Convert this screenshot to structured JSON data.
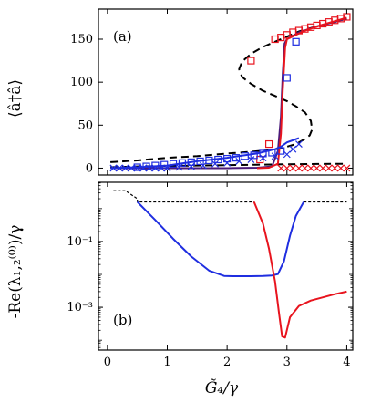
{
  "figure": {
    "x_label": "G̃₄/γ",
    "x_ticks": [
      "0",
      "1",
      "2",
      "3",
      "4"
    ]
  },
  "chart_data": [
    {
      "panel": "(a)",
      "type": "line",
      "ylabel": "⟨â†â⟩",
      "xlim": [
        -0.15,
        4.1
      ],
      "ylim": [
        -8,
        185
      ],
      "x_ticks": [
        0,
        1,
        2,
        3,
        4
      ],
      "y_ticks": [
        0,
        50,
        100,
        150
      ],
      "y_tick_labels": [
        "0",
        "50",
        "100",
        "150"
      ],
      "colors": {
        "red": "#e8141e",
        "blue": "#1f2ee0",
        "purple": "#4a1a7a",
        "black": "#000000"
      },
      "series": [
        {
          "style": "dashed",
          "color": "black",
          "x": [
            0.05,
            0.5,
            1.0,
            1.5,
            2.0,
            2.4,
            2.7,
            2.9,
            3.0,
            3.1,
            3.2,
            3.3,
            3.38,
            3.42,
            3.4,
            3.3,
            3.15,
            3.0,
            2.8,
            2.6,
            2.4,
            2.25,
            2.2,
            2.25,
            2.4,
            2.6,
            2.8,
            3.0,
            3.2,
            3.5,
            3.8,
            4.0
          ],
          "y": [
            7,
            9,
            12,
            14,
            17,
            19,
            21,
            23,
            25,
            27,
            30,
            34,
            38,
            45,
            55,
            65,
            72,
            78,
            84,
            90,
            98,
            106,
            115,
            124,
            133,
            141,
            147,
            153,
            159,
            165,
            170,
            174
          ]
        },
        {
          "style": "dashed",
          "color": "black",
          "x": [
            0.05,
            0.5,
            1.0,
            1.5,
            2.0,
            2.5,
            3.0,
            3.5,
            4.0
          ],
          "y": [
            1,
            2,
            2.5,
            3,
            3.5,
            4,
            4.5,
            4.8,
            5
          ]
        },
        {
          "style": "solid",
          "color": "purple",
          "x": [
            0.05,
            0.5,
            1.0,
            1.5,
            2.0,
            2.5,
            2.75,
            2.85,
            2.9,
            2.93,
            2.96,
            3.0,
            3.2,
            3.5,
            3.8,
            4.0
          ],
          "y": [
            0,
            0,
            0,
            0,
            0,
            0.5,
            2,
            20,
            60,
            110,
            145,
            150,
            158,
            165,
            170,
            174
          ]
        },
        {
          "style": "solid",
          "color": "red",
          "x": [
            2.5,
            2.7,
            2.85,
            2.9,
            2.93,
            2.97,
            3.0,
            3.3,
            3.6,
            4.0
          ],
          "y": [
            0,
            0.5,
            5,
            40,
            90,
            140,
            150,
            160,
            167,
            175
          ]
        },
        {
          "style": "solid",
          "color": "blue",
          "x": [
            0.05,
            0.5,
            1.0,
            1.5,
            2.0,
            2.5,
            2.8,
            2.9,
            3.0,
            3.2
          ],
          "y": [
            0,
            1,
            3,
            8,
            12,
            17,
            22,
            25,
            30,
            35
          ]
        },
        {
          "style": "markers",
          "marker": "square",
          "color": "red",
          "x": [
            2.4,
            2.55,
            2.7,
            2.8,
            2.9,
            3.0,
            3.1,
            3.2,
            3.3,
            3.4,
            3.5,
            3.6,
            3.7,
            3.8,
            3.9,
            4.0
          ],
          "y": [
            125,
            10,
            28,
            150,
            152,
            155,
            158,
            160,
            162,
            164,
            166,
            168,
            170,
            172,
            174,
            176
          ]
        },
        {
          "style": "markers",
          "marker": "square",
          "color": "blue",
          "x": [
            0.5,
            0.65,
            0.8,
            0.95,
            1.1,
            1.25,
            1.4,
            1.55,
            1.7,
            1.85,
            2.0,
            2.15,
            2.3,
            2.45,
            2.6,
            2.75,
            2.9,
            3.0,
            3.15
          ],
          "y": [
            1,
            2,
            3,
            4,
            5,
            6,
            7,
            8,
            9,
            10,
            11,
            12,
            14,
            15,
            17,
            18,
            20,
            105,
            147
          ]
        },
        {
          "style": "markers",
          "marker": "x",
          "color": "red",
          "x": [
            2.9,
            3.0,
            3.1,
            3.2,
            3.3,
            3.4,
            3.5,
            3.6,
            3.7,
            3.8,
            3.9,
            4.0
          ],
          "y": [
            0,
            0,
            0,
            0,
            0,
            0,
            0,
            0,
            0,
            0,
            0,
            0
          ]
        },
        {
          "style": "markers",
          "marker": "x",
          "color": "blue",
          "x": [
            0.1,
            0.2,
            0.3,
            0.4,
            0.5,
            0.6,
            0.7,
            0.8,
            0.9,
            1.0,
            1.2,
            1.4,
            1.6,
            1.8,
            2.0,
            2.2,
            2.4,
            2.6,
            2.8,
            3.0,
            3.1,
            3.2
          ],
          "y": [
            0,
            0,
            0,
            0,
            0,
            0,
            0,
            0,
            0,
            0,
            1,
            2,
            3,
            5,
            6,
            8,
            10,
            12,
            14,
            16,
            22,
            28
          ]
        }
      ]
    },
    {
      "panel": "(b)",
      "type": "line",
      "ylabel": "-Re(λ₁,₂⁽⁰⁾)/γ",
      "xlim": [
        -0.15,
        4.1
      ],
      "ylim_log10": [
        -4.3,
        0.8
      ],
      "log_y": true,
      "x_ticks": [
        0,
        1,
        2,
        3,
        4
      ],
      "x_tick_labels": [
        "0",
        "1",
        "2",
        "3",
        "4"
      ],
      "y_ticks": [
        0.001,
        0.1
      ],
      "y_tick_labels": [
        "10⁻³",
        "10⁻¹"
      ],
      "colors": {
        "red": "#e8141e",
        "blue": "#1f2ee0",
        "black": "#000000"
      },
      "series": [
        {
          "style": "dashed",
          "color": "black",
          "x": [
            0.1,
            0.3,
            0.5,
            0.5,
            1.0,
            2.0,
            2.45,
            2.45,
            2.45
          ],
          "y": [
            3.5,
            3.5,
            2.0,
            1.6,
            1.6,
            1.6,
            1.6,
            1.6,
            1.6
          ]
        },
        {
          "style": "dashed",
          "color": "black",
          "x": [
            3.28,
            3.5,
            4.0
          ],
          "y": [
            1.6,
            1.6,
            1.6
          ]
        },
        {
          "style": "solid",
          "color": "blue",
          "x": [
            0.5,
            0.8,
            1.1,
            1.4,
            1.7,
            1.95,
            2.1,
            2.4,
            2.6,
            2.75,
            2.85,
            2.95,
            3.05,
            3.15,
            3.28
          ],
          "y": [
            1.6,
            0.45,
            0.12,
            0.035,
            0.013,
            0.009,
            0.0088,
            0.0088,
            0.0089,
            0.0093,
            0.0102,
            0.025,
            0.15,
            0.6,
            1.6
          ]
        },
        {
          "style": "solid",
          "color": "red",
          "x": [
            2.45,
            2.6,
            2.7,
            2.8,
            2.87,
            2.92,
            2.97,
            3.05,
            3.2,
            3.4,
            3.6,
            3.8,
            4.0
          ],
          "y": [
            1.6,
            0.35,
            0.06,
            0.0062,
            0.0006,
            0.00013,
            0.00012,
            0.0005,
            0.0011,
            0.0016,
            0.002,
            0.0025,
            0.003
          ]
        }
      ]
    }
  ]
}
